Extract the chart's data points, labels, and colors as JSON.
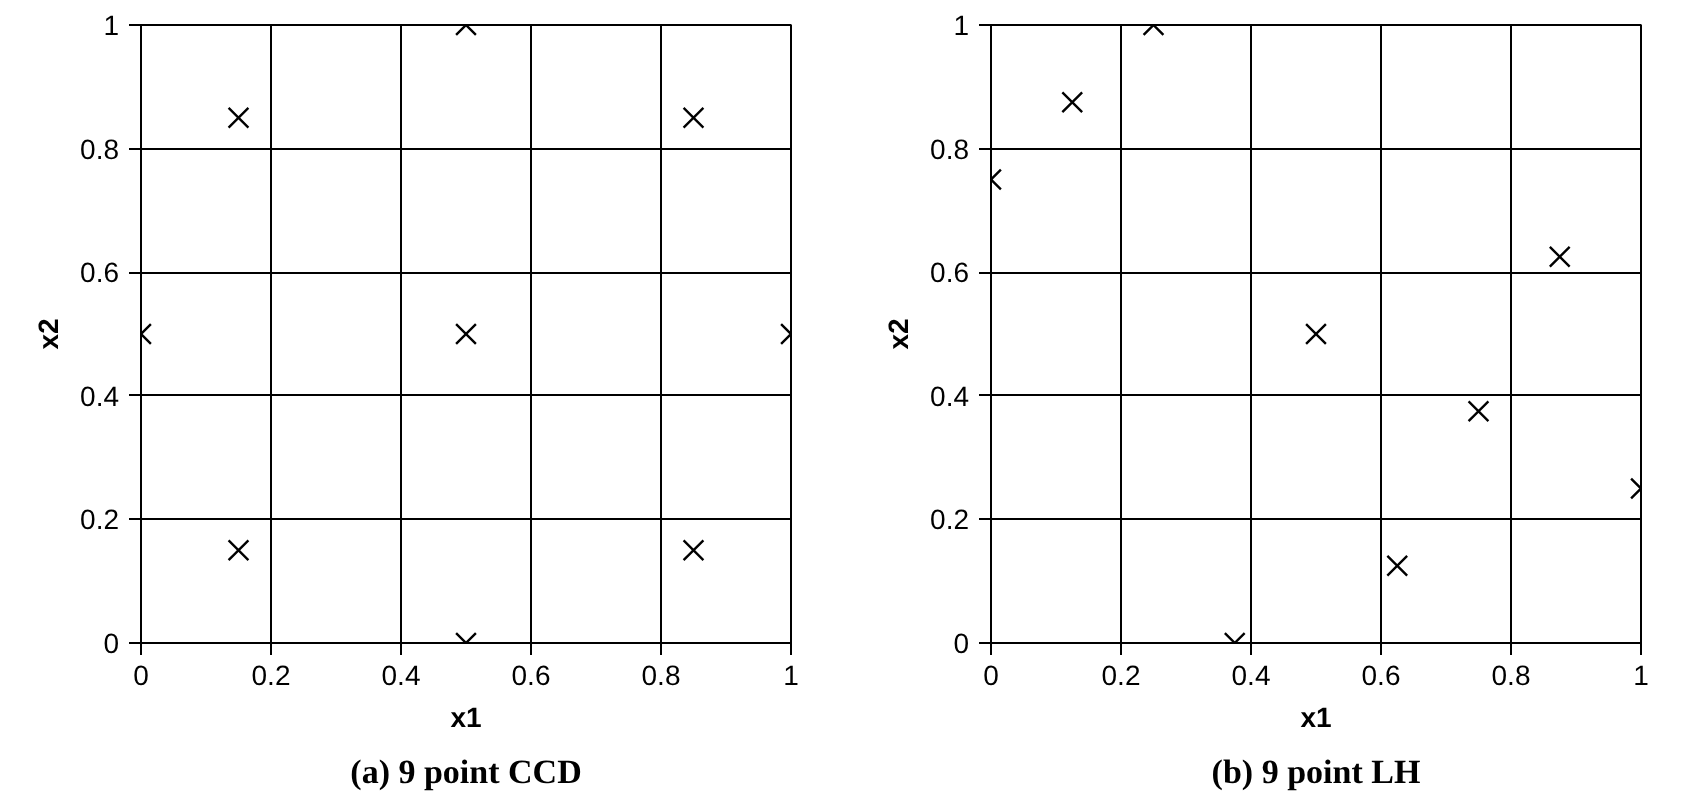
{
  "chart_data": [
    {
      "type": "scatter",
      "title": "(a) 9 point CCD",
      "xlabel": "x1",
      "ylabel": "x2",
      "xlim": [
        0,
        1
      ],
      "ylim": [
        0,
        1
      ],
      "xticks": [
        0,
        0.2,
        0.4,
        0.6,
        0.8,
        1
      ],
      "yticks": [
        0,
        0.2,
        0.4,
        0.6,
        0.8,
        1
      ],
      "grid": true,
      "marker": "cross",
      "series": [
        {
          "color": "#000000",
          "x": [
            0,
            0.15,
            0.5,
            0.85,
            1,
            0.85,
            0.5,
            0.15,
            0.5
          ],
          "values": [
            0.5,
            0.85,
            1,
            0.85,
            0.5,
            0.15,
            0,
            0.15,
            0.5
          ]
        }
      ]
    },
    {
      "type": "scatter",
      "title": "(b) 9 point LH",
      "xlabel": "x1",
      "ylabel": "x2",
      "xlim": [
        0,
        1
      ],
      "ylim": [
        0,
        1
      ],
      "xticks": [
        0,
        0.2,
        0.4,
        0.6,
        0.8,
        1
      ],
      "yticks": [
        0,
        0.2,
        0.4,
        0.6,
        0.8,
        1
      ],
      "grid": true,
      "marker": "cross",
      "series": [
        {
          "color": "#000000",
          "x": [
            0,
            0.125,
            0.25,
            0.375,
            0.5,
            0.625,
            0.75,
            0.875,
            1
          ],
          "values": [
            0.75,
            0.875,
            1,
            0,
            0.5,
            0.125,
            0.375,
            0.625,
            0.25
          ]
        }
      ]
    }
  ]
}
